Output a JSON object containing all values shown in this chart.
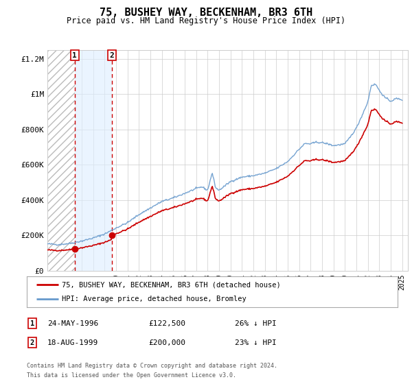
{
  "title": "75, BUSHEY WAY, BECKENHAM, BR3 6TH",
  "subtitle": "Price paid vs. HM Land Registry's House Price Index (HPI)",
  "title_fontsize": 11,
  "subtitle_fontsize": 8.5,
  "background_color": "#ffffff",
  "plot_bg_color": "#ffffff",
  "grid_color": "#cccccc",
  "ylim": [
    0,
    1250000
  ],
  "xlim_start": 1994.0,
  "xlim_end": 2025.5,
  "yticks": [
    0,
    200000,
    400000,
    600000,
    800000,
    1000000,
    1200000
  ],
  "ytick_labels": [
    "£0",
    "£200K",
    "£400K",
    "£600K",
    "£800K",
    "£1M",
    "£1.2M"
  ],
  "hatch_region_end": 1996.42,
  "shade_region_start": 1996.42,
  "shade_region_end": 1999.63,
  "sale1_x": 1996.39,
  "sale1_y": 122500,
  "sale2_x": 1999.63,
  "sale2_y": 200000,
  "sale_color": "#cc0000",
  "sale_marker_size": 6,
  "legend_label_red": "75, BUSHEY WAY, BECKENHAM, BR3 6TH (detached house)",
  "legend_label_blue": "HPI: Average price, detached house, Bromley",
  "footer_text1": "Contains HM Land Registry data © Crown copyright and database right 2024.",
  "footer_text2": "This data is licensed under the Open Government Licence v3.0.",
  "annotation1_label": "1",
  "annotation1_date": "24-MAY-1996",
  "annotation1_price": "£122,500",
  "annotation1_hpi": "26% ↓ HPI",
  "annotation2_label": "2",
  "annotation2_date": "18-AUG-1999",
  "annotation2_price": "£200,000",
  "annotation2_hpi": "23% ↓ HPI",
  "red_line_color": "#cc0000",
  "blue_line_color": "#6699cc",
  "vline_color": "#cc0000"
}
